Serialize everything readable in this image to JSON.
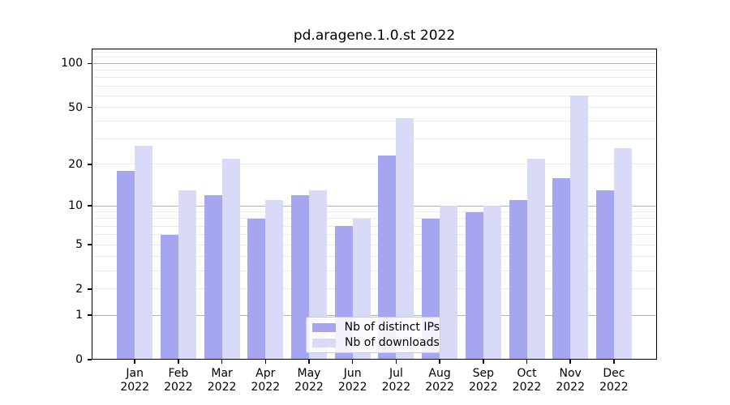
{
  "title": "pd.aragene.1.0.st 2022",
  "chart_data": {
    "type": "bar",
    "title": "pd.aragene.1.0.st 2022",
    "categories": [
      "Jan",
      "Feb",
      "Mar",
      "Apr",
      "May",
      "Jun",
      "Jul",
      "Aug",
      "Sep",
      "Oct",
      "Nov",
      "Dec"
    ],
    "year_label": "2022",
    "series": [
      {
        "name": "Nb of distinct IPs",
        "color": "#a6a6f0",
        "values": [
          18,
          6,
          12,
          8,
          12,
          7,
          23,
          8,
          9,
          11,
          16,
          13
        ]
      },
      {
        "name": "Nb of downloads",
        "color": "#d9d9f8",
        "values": [
          27,
          13,
          22,
          11,
          13,
          8,
          42,
          10,
          10,
          22,
          60,
          26
        ]
      }
    ],
    "yscale": "log1p",
    "ylim": [
      0,
      125
    ],
    "y_ticks": [
      {
        "value": 100,
        "label": "100"
      },
      {
        "value": 50,
        "label": "50"
      },
      {
        "value": 20,
        "label": "20"
      },
      {
        "value": 10,
        "label": "10"
      },
      {
        "value": 5,
        "label": "5"
      },
      {
        "value": 2,
        "label": "2"
      },
      {
        "value": 1,
        "label": "1"
      },
      {
        "value": 0,
        "label": "0"
      }
    ],
    "major_grid_values": [
      1,
      10,
      100
    ],
    "minor_grid_values": [
      2,
      3,
      4,
      5,
      6,
      7,
      8,
      9,
      20,
      30,
      40,
      50,
      60,
      70,
      80,
      90,
      110,
      120
    ],
    "grid": true,
    "legend_position": "lower-center"
  },
  "colors": {
    "bar_ips": "#a6a6f0",
    "bar_downloads": "#d9d9f8",
    "major_grid": "#b2b2b2",
    "minor_grid": "#ebebeb",
    "axis": "#000000"
  }
}
